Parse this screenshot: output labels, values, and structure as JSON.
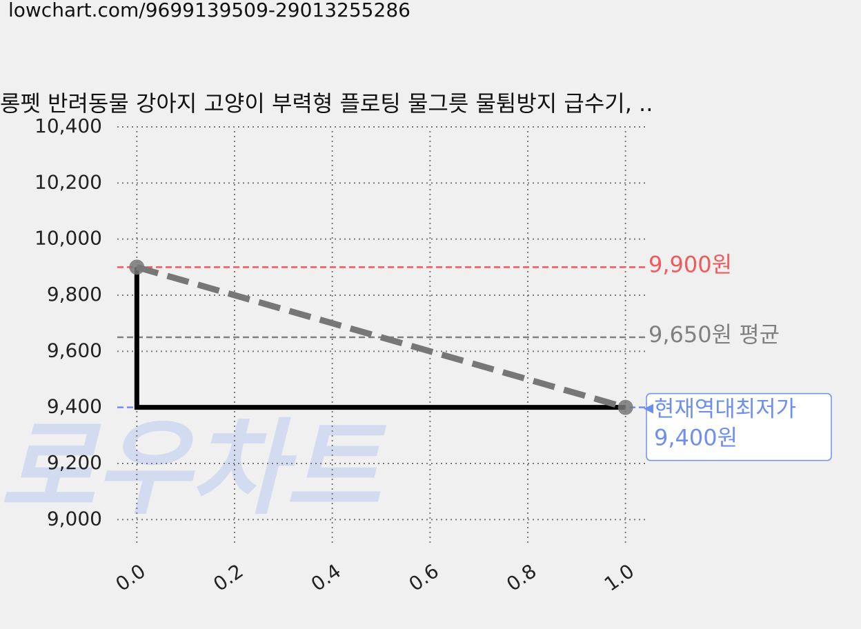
{
  "url": "lowchart.com/9699139509-29013255286",
  "chart_data": {
    "type": "line",
    "title": "롱펫 반려동물 강아지 고양이 부력형 플로팅 물그릇 물튐방지 급수기, ..",
    "watermark": "로우차트",
    "xlim": [
      -0.04,
      1.04
    ],
    "ylim": [
      8900,
      10400
    ],
    "xticks": [
      {
        "value": 0,
        "label": "0.0"
      },
      {
        "value": 0.2,
        "label": "0.2"
      },
      {
        "value": 0.4,
        "label": "0.4"
      },
      {
        "value": 0.6,
        "label": "0.6"
      },
      {
        "value": 0.8,
        "label": "0.8"
      },
      {
        "value": 1,
        "label": "1.0"
      }
    ],
    "yticks": [
      {
        "value": 9000,
        "label": "9,000"
      },
      {
        "value": 9200,
        "label": "9,200"
      },
      {
        "value": 9400,
        "label": "9,400"
      },
      {
        "value": 9600,
        "label": "9,600"
      },
      {
        "value": 9800,
        "label": "9,800"
      },
      {
        "value": 10000,
        "label": "10,000"
      },
      {
        "value": 10200,
        "label": "10,200"
      },
      {
        "value": 10400,
        "label": "10,400"
      }
    ],
    "grid": true,
    "series": [
      {
        "color": "#000000",
        "x": [
          0,
          0,
          1
        ],
        "values": [
          9900,
          9400,
          9400
        ],
        "style": "solid"
      },
      {
        "color": "#777777",
        "x": [
          0,
          1
        ],
        "values": [
          9900,
          9400
        ],
        "style": "dashed",
        "markers": true
      }
    ],
    "hlines": [
      {
        "value": 9900,
        "label": "9,900원",
        "color": "#f05a5a"
      },
      {
        "value": 9650,
        "label": "9,650원 평균",
        "color": "#808080"
      },
      {
        "value": 9400,
        "label": "9,400원",
        "note": "현재역대최저가",
        "color": "#6f8ff0"
      }
    ]
  }
}
